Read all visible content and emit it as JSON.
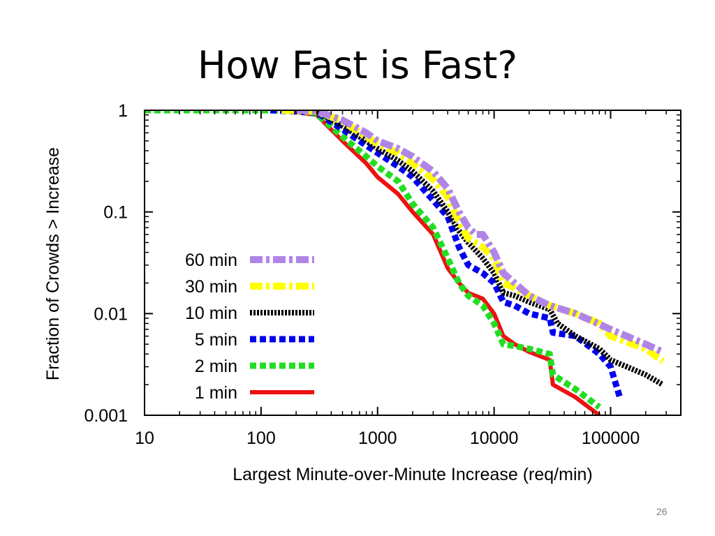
{
  "slide": {
    "title": "How Fast is Fast?",
    "page_number": "26"
  },
  "chart_data": {
    "type": "line",
    "title": "",
    "xlabel": "Largest Minute-over-Minute Increase (req/min)",
    "ylabel": "Fraction of Crowds > Increase",
    "xscale": "log",
    "yscale": "log",
    "xlim": [
      10,
      400000
    ],
    "ylim": [
      0.001,
      1
    ],
    "x_ticks": [
      10,
      100,
      1000,
      10000,
      100000
    ],
    "x_tick_labels": [
      "10",
      "100",
      "1000",
      "10000",
      "100000"
    ],
    "y_ticks": [
      0.001,
      0.01,
      0.1,
      1
    ],
    "y_tick_labels": [
      "0.001",
      "0.01",
      "0.1",
      "1"
    ],
    "grid": false,
    "legend_position": "bottom-left",
    "series": [
      {
        "name": "60 min",
        "color": "#b185e8",
        "style": "dash-dot",
        "points": [
          [
            200,
            1
          ],
          [
            300,
            0.98
          ],
          [
            500,
            0.8
          ],
          [
            800,
            0.6
          ],
          [
            1000,
            0.5
          ],
          [
            1500,
            0.42
          ],
          [
            2000,
            0.35
          ],
          [
            3000,
            0.25
          ],
          [
            4000,
            0.17
          ],
          [
            5000,
            0.1
          ],
          [
            6000,
            0.07
          ],
          [
            7000,
            0.06
          ],
          [
            8000,
            0.06
          ],
          [
            10000,
            0.04
          ],
          [
            12000,
            0.025
          ],
          [
            15000,
            0.02
          ],
          [
            20000,
            0.015
          ],
          [
            30000,
            0.012
          ],
          [
            50000,
            0.01
          ],
          [
            100000,
            0.007
          ],
          [
            200000,
            0.005
          ],
          [
            280000,
            0.0042
          ]
        ]
      },
      {
        "name": "30 min",
        "color": "#ffff00",
        "style": "dash-dot",
        "points": [
          [
            150,
            1
          ],
          [
            300,
            0.97
          ],
          [
            500,
            0.78
          ],
          [
            800,
            0.55
          ],
          [
            1000,
            0.47
          ],
          [
            1500,
            0.38
          ],
          [
            2000,
            0.3
          ],
          [
            3000,
            0.21
          ],
          [
            4000,
            0.14
          ],
          [
            5000,
            0.08
          ],
          [
            6000,
            0.055
          ],
          [
            8000,
            0.045
          ],
          [
            10000,
            0.035
          ],
          [
            12000,
            0.02
          ],
          [
            15000,
            0.018
          ],
          [
            20000,
            0.015
          ],
          [
            30000,
            0.012
          ],
          [
            50000,
            0.01
          ],
          [
            80000,
            0.008
          ],
          [
            100000,
            0.006
          ],
          [
            200000,
            0.0045
          ],
          [
            280000,
            0.0034
          ]
        ]
      },
      {
        "name": "10 min",
        "color": "#000000",
        "style": "dotted",
        "points": [
          [
            200,
            1
          ],
          [
            300,
            0.97
          ],
          [
            500,
            0.7
          ],
          [
            800,
            0.5
          ],
          [
            1000,
            0.42
          ],
          [
            1500,
            0.32
          ],
          [
            2000,
            0.25
          ],
          [
            3000,
            0.16
          ],
          [
            4000,
            0.1
          ],
          [
            5000,
            0.065
          ],
          [
            6000,
            0.05
          ],
          [
            8000,
            0.035
          ],
          [
            10000,
            0.025
          ],
          [
            12000,
            0.016
          ],
          [
            15000,
            0.015
          ],
          [
            20000,
            0.013
          ],
          [
            30000,
            0.011
          ],
          [
            35000,
            0.008
          ],
          [
            50000,
            0.006
          ],
          [
            80000,
            0.0045
          ],
          [
            100000,
            0.0035
          ],
          [
            200000,
            0.0025
          ],
          [
            280000,
            0.002
          ]
        ]
      },
      {
        "name": "5 min",
        "color": "#0000ee",
        "style": "dashed",
        "points": [
          [
            120,
            1
          ],
          [
            300,
            0.95
          ],
          [
            500,
            0.65
          ],
          [
            800,
            0.45
          ],
          [
            1000,
            0.38
          ],
          [
            1500,
            0.28
          ],
          [
            2000,
            0.22
          ],
          [
            3000,
            0.13
          ],
          [
            4000,
            0.09
          ],
          [
            5000,
            0.045
          ],
          [
            6000,
            0.03
          ],
          [
            8000,
            0.025
          ],
          [
            10000,
            0.02
          ],
          [
            12000,
            0.013
          ],
          [
            15000,
            0.012
          ],
          [
            20000,
            0.01
          ],
          [
            30000,
            0.009
          ],
          [
            32000,
            0.0065
          ],
          [
            50000,
            0.006
          ],
          [
            80000,
            0.004
          ],
          [
            100000,
            0.003
          ],
          [
            120000,
            0.0015
          ]
        ]
      },
      {
        "name": "2 min",
        "color": "#22dd22",
        "style": "dashed",
        "points": [
          [
            10,
            1
          ],
          [
            200,
            1
          ],
          [
            300,
            0.92
          ],
          [
            500,
            0.55
          ],
          [
            800,
            0.35
          ],
          [
            1000,
            0.28
          ],
          [
            1500,
            0.2
          ],
          [
            2000,
            0.12
          ],
          [
            3000,
            0.07
          ],
          [
            4000,
            0.035
          ],
          [
            5000,
            0.02
          ],
          [
            6000,
            0.015
          ],
          [
            8000,
            0.012
          ],
          [
            10000,
            0.008
          ],
          [
            12000,
            0.005
          ],
          [
            15000,
            0.0048
          ],
          [
            20000,
            0.0045
          ],
          [
            30000,
            0.004
          ],
          [
            32000,
            0.0025
          ],
          [
            50000,
            0.0018
          ],
          [
            80000,
            0.0012
          ]
        ]
      },
      {
        "name": "1 min",
        "color": "#ee1111",
        "style": "solid",
        "points": [
          [
            150,
            1
          ],
          [
            300,
            0.9
          ],
          [
            500,
            0.5
          ],
          [
            800,
            0.3
          ],
          [
            1000,
            0.22
          ],
          [
            1500,
            0.15
          ],
          [
            2000,
            0.1
          ],
          [
            3000,
            0.06
          ],
          [
            4000,
            0.028
          ],
          [
            5000,
            0.02
          ],
          [
            6000,
            0.016
          ],
          [
            8000,
            0.014
          ],
          [
            10000,
            0.01
          ],
          [
            12000,
            0.006
          ],
          [
            15000,
            0.005
          ],
          [
            20000,
            0.0042
          ],
          [
            30000,
            0.0035
          ],
          [
            32000,
            0.002
          ],
          [
            50000,
            0.0015
          ],
          [
            80000,
            0.001
          ]
        ]
      }
    ]
  }
}
